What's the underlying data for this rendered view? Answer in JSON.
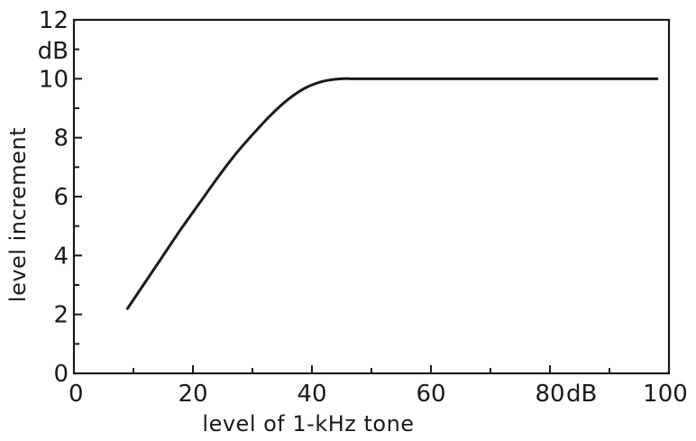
{
  "chart_data": {
    "type": "line",
    "title": "",
    "xlabel": "level of 1-kHz tone",
    "ylabel": "level increment",
    "xlim": [
      0,
      100
    ],
    "ylim": [
      0,
      12
    ],
    "x_ticks": [
      0,
      20,
      40,
      60,
      80,
      100
    ],
    "x_tick_labels": [
      "0",
      "20",
      "40",
      "60",
      "80",
      "100"
    ],
    "x_unit_label": "dB",
    "y_ticks": [
      0,
      2,
      4,
      6,
      8,
      10,
      12
    ],
    "y_tick_labels": [
      "0",
      "2",
      "4",
      "6",
      "8",
      "10",
      "12"
    ],
    "y_unit_label": "dB",
    "grid": false,
    "series": [
      {
        "x": [
          9,
          12,
          15,
          18,
          21,
          24,
          27,
          30,
          33,
          36,
          39,
          42,
          45,
          47,
          50,
          60,
          70,
          80,
          90,
          98
        ],
        "y": [
          2.2,
          3.1,
          4.0,
          4.9,
          5.75,
          6.6,
          7.4,
          8.1,
          8.75,
          9.3,
          9.7,
          9.92,
          10.0,
          10.0,
          10.0,
          10.0,
          10.0,
          10.0,
          10.0,
          10.0
        ]
      }
    ],
    "color": "#1a1a1a"
  }
}
